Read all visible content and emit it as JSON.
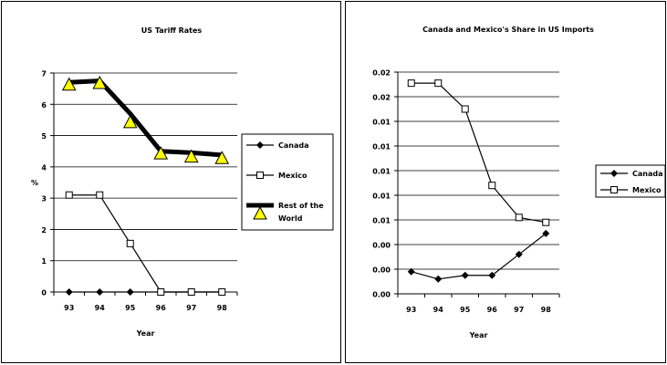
{
  "chart_data": [
    {
      "type": "line",
      "title": "US Tariff Rates",
      "xlabel": "Year",
      "ylabel": "%",
      "categories": [
        "93",
        "94",
        "95",
        "96",
        "97",
        "98"
      ],
      "ylim": [
        0,
        7
      ],
      "yticks": [
        "0",
        "1",
        "2",
        "3",
        "4",
        "5",
        "6",
        "7"
      ],
      "grid": true,
      "legend_position": "right",
      "series": [
        {
          "name": "Canada",
          "values": [
            0,
            0,
            0,
            0,
            0,
            0
          ],
          "color": "#000000"
        },
        {
          "name": "Mexico",
          "values": [
            3.1,
            3.1,
            1.55,
            0,
            0,
            0
          ],
          "color": "#000000"
        },
        {
          "name": "Rest of the World",
          "values": [
            6.6,
            6.65,
            5.4,
            4.4,
            4.3,
            4.25
          ],
          "line": [
            6.7,
            6.75,
            5.7,
            4.5,
            4.45,
            4.38
          ],
          "color": "#000000",
          "marker_color": "#ffff00"
        }
      ]
    },
    {
      "type": "line",
      "title": "Canada and Mexico's Share in US Imports",
      "xlabel": "Year",
      "ylabel": "",
      "categories": [
        "93",
        "94",
        "95",
        "96",
        "97",
        "98"
      ],
      "ylim": [
        0,
        9
      ],
      "yticks": [
        "0.00",
        "0.00",
        "0.00",
        "0.01",
        "0.01",
        "0.01",
        "0.01",
        "0.01",
        "0.02",
        "0.02"
      ],
      "grid": true,
      "legend_position": "right",
      "series": [
        {
          "name": "Canada",
          "values": [
            0.9,
            0.6,
            0.75,
            0.75,
            1.6,
            2.45
          ],
          "color": "#000000"
        },
        {
          "name": "Mexico",
          "values": [
            8.55,
            8.55,
            7.5,
            4.4,
            3.1,
            2.9
          ],
          "color": "#000000"
        }
      ]
    }
  ]
}
